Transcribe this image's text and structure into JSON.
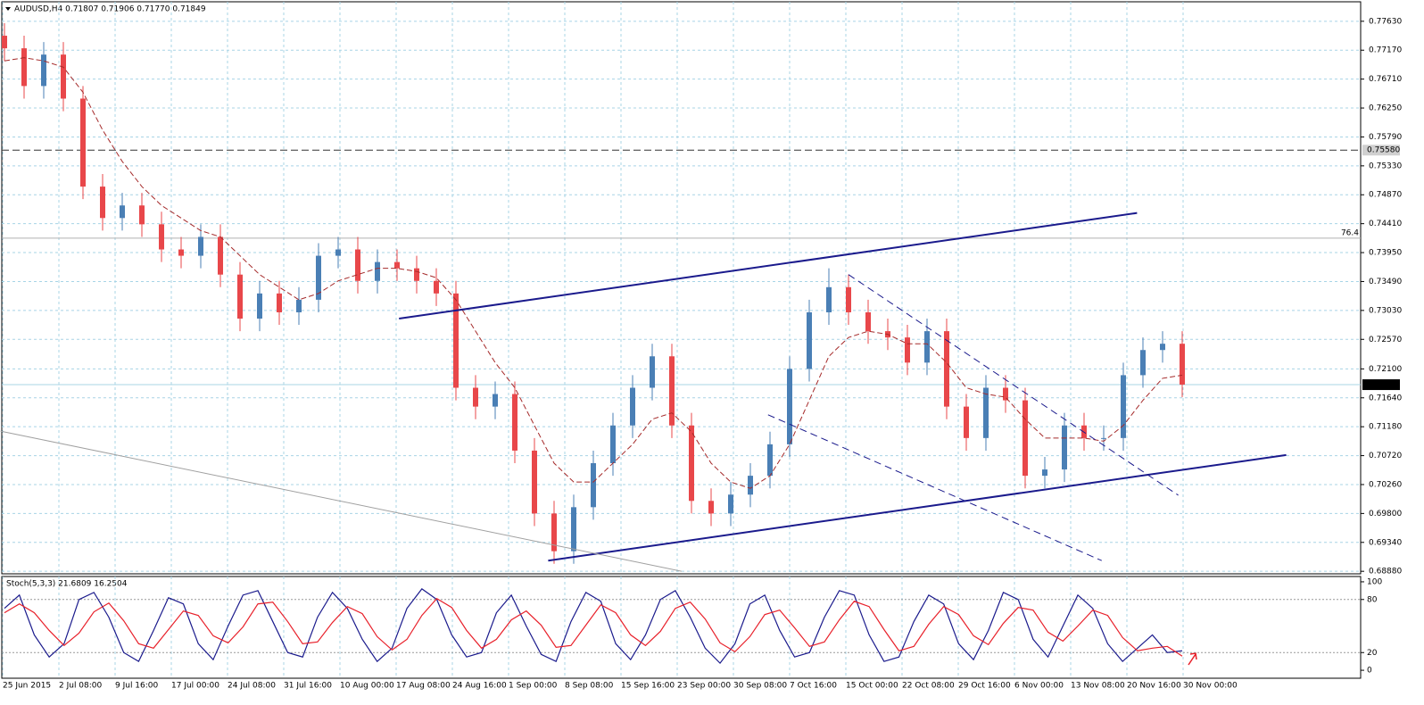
{
  "chart_data": [
    {
      "type": "candlestick",
      "title": "AUDUSD,H4  0.71807 0.71906 0.71770 0.71849",
      "up_color": "#4a7fb5",
      "down_color": "#e8474a",
      "ma_color": "#a52a2a",
      "candles": [
        [
          0.774,
          0.776,
          0.77,
          0.772
        ],
        [
          0.772,
          0.774,
          0.764,
          0.766
        ],
        [
          0.766,
          0.773,
          0.764,
          0.771
        ],
        [
          0.771,
          0.773,
          0.762,
          0.764
        ],
        [
          0.764,
          0.766,
          0.748,
          0.75
        ],
        [
          0.75,
          0.752,
          0.743,
          0.745
        ],
        [
          0.745,
          0.749,
          0.743,
          0.747
        ],
        [
          0.747,
          0.749,
          0.742,
          0.744
        ],
        [
          0.744,
          0.746,
          0.738,
          0.74
        ],
        [
          0.74,
          0.742,
          0.737,
          0.739
        ],
        [
          0.739,
          0.744,
          0.737,
          0.742
        ],
        [
          0.742,
          0.744,
          0.734,
          0.736
        ],
        [
          0.736,
          0.738,
          0.727,
          0.729
        ],
        [
          0.729,
          0.735,
          0.727,
          0.733
        ],
        [
          0.733,
          0.735,
          0.728,
          0.73
        ],
        [
          0.73,
          0.734,
          0.728,
          0.732
        ],
        [
          0.732,
          0.741,
          0.73,
          0.739
        ],
        [
          0.739,
          0.742,
          0.737,
          0.74
        ],
        [
          0.74,
          0.742,
          0.733,
          0.735
        ],
        [
          0.735,
          0.74,
          0.733,
          0.738
        ],
        [
          0.738,
          0.74,
          0.735,
          0.737
        ],
        [
          0.737,
          0.739,
          0.733,
          0.735
        ],
        [
          0.735,
          0.737,
          0.731,
          0.733
        ],
        [
          0.733,
          0.735,
          0.716,
          0.718
        ],
        [
          0.718,
          0.72,
          0.713,
          0.715
        ],
        [
          0.715,
          0.719,
          0.713,
          0.717
        ],
        [
          0.717,
          0.719,
          0.706,
          0.708
        ],
        [
          0.708,
          0.71,
          0.696,
          0.698
        ],
        [
          0.698,
          0.7,
          0.69,
          0.692
        ],
        [
          0.692,
          0.701,
          0.69,
          0.699
        ],
        [
          0.699,
          0.708,
          0.697,
          0.706
        ],
        [
          0.706,
          0.714,
          0.704,
          0.712
        ],
        [
          0.712,
          0.72,
          0.71,
          0.718
        ],
        [
          0.718,
          0.725,
          0.716,
          0.723
        ],
        [
          0.723,
          0.725,
          0.71,
          0.712
        ],
        [
          0.712,
          0.714,
          0.698,
          0.7
        ],
        [
          0.7,
          0.702,
          0.696,
          0.698
        ],
        [
          0.698,
          0.703,
          0.696,
          0.701
        ],
        [
          0.701,
          0.706,
          0.699,
          0.704
        ],
        [
          0.704,
          0.711,
          0.702,
          0.709
        ],
        [
          0.709,
          0.723,
          0.707,
          0.721
        ],
        [
          0.721,
          0.732,
          0.719,
          0.73
        ],
        [
          0.73,
          0.737,
          0.728,
          0.734
        ],
        [
          0.734,
          0.736,
          0.728,
          0.73
        ],
        [
          0.73,
          0.732,
          0.725,
          0.727
        ],
        [
          0.727,
          0.729,
          0.724,
          0.726
        ],
        [
          0.726,
          0.728,
          0.72,
          0.722
        ],
        [
          0.722,
          0.729,
          0.72,
          0.727
        ],
        [
          0.727,
          0.729,
          0.713,
          0.715
        ],
        [
          0.715,
          0.717,
          0.708,
          0.71
        ],
        [
          0.71,
          0.72,
          0.708,
          0.718
        ],
        [
          0.718,
          0.72,
          0.714,
          0.716
        ],
        [
          0.716,
          0.718,
          0.702,
          0.704
        ],
        [
          0.704,
          0.707,
          0.702,
          0.705
        ],
        [
          0.705,
          0.714,
          0.703,
          0.712
        ],
        [
          0.712,
          0.714,
          0.708,
          0.71
        ],
        [
          0.71,
          0.712,
          0.708,
          0.71
        ],
        [
          0.71,
          0.722,
          0.708,
          0.72
        ],
        [
          0.72,
          0.726,
          0.718,
          0.724
        ],
        [
          0.724,
          0.727,
          0.722,
          0.725
        ],
        [
          0.725,
          0.727,
          0.7165,
          0.7185
        ]
      ],
      "ma": [
        0.77,
        0.7705,
        0.77,
        0.769,
        0.765,
        0.759,
        0.754,
        0.75,
        0.747,
        0.745,
        0.743,
        0.742,
        0.739,
        0.736,
        0.734,
        0.732,
        0.733,
        0.735,
        0.736,
        0.737,
        0.737,
        0.7365,
        0.7355,
        0.732,
        0.727,
        0.722,
        0.718,
        0.712,
        0.706,
        0.703,
        0.703,
        0.706,
        0.709,
        0.713,
        0.714,
        0.711,
        0.706,
        0.703,
        0.702,
        0.704,
        0.709,
        0.716,
        0.723,
        0.726,
        0.727,
        0.7265,
        0.725,
        0.725,
        0.722,
        0.718,
        0.717,
        0.7165,
        0.713,
        0.71,
        0.71,
        0.71,
        0.7095,
        0.712,
        0.716,
        0.7195,
        0.72
      ],
      "ylim": [
        0.6884,
        0.7794
      ],
      "yticks": [
        {
          "value": 0.7763,
          "label": "0.77630"
        },
        {
          "value": 0.7717,
          "label": "0.77170"
        },
        {
          "value": 0.7671,
          "label": "0.76710"
        },
        {
          "value": 0.7625,
          "label": "0.76250"
        },
        {
          "value": 0.7579,
          "label": "0.75790"
        },
        {
          "value": 0.7533,
          "label": "0.75330"
        },
        {
          "value": 0.7487,
          "label": "0.74870"
        },
        {
          "value": 0.7441,
          "label": "0.74410"
        },
        {
          "value": 0.7395,
          "label": "0.73950"
        },
        {
          "value": 0.7349,
          "label": "0.73490"
        },
        {
          "value": 0.7303,
          "label": "0.73030"
        },
        {
          "value": 0.7257,
          "label": "0.72570"
        },
        {
          "value": 0.721,
          "label": "0.72100"
        },
        {
          "value": 0.7164,
          "label": "0.71640"
        },
        {
          "value": 0.7118,
          "label": "0.71180"
        },
        {
          "value": 0.7072,
          "label": "0.70720"
        },
        {
          "value": 0.7026,
          "label": "0.70260"
        },
        {
          "value": 0.698,
          "label": "0.69800"
        },
        {
          "value": 0.6934,
          "label": "0.69340"
        },
        {
          "value": 0.6888,
          "label": "0.68880"
        }
      ],
      "price_lines": [
        {
          "value": 0.7558,
          "label": "0.75580"
        },
        {
          "value": 0.71849,
          "label": "0.71849"
        }
      ],
      "level": {
        "value": 0.7418,
        "label": "76.4"
      },
      "trend_lines": [
        {
          "from": [
            20.1,
            0.729
          ],
          "to": [
            57.7,
            0.7458
          ],
          "style": "solid",
          "color": "#1a1a8c"
        },
        {
          "from": [
            27.7,
            0.6905
          ],
          "to": [
            65.3,
            0.7073
          ],
          "style": "solid",
          "color": "#1a1a8c"
        },
        {
          "from": [
            43,
            0.736
          ],
          "to": [
            59.8,
            0.7009
          ],
          "style": "dashed",
          "color": "#1a1a8c"
        },
        {
          "from": [
            38.9,
            0.7137
          ],
          "to": [
            55.9,
            0.6905
          ],
          "style": "dashed",
          "color": "#1a1a8c"
        },
        {
          "from": [
            -0.2,
            0.7111
          ],
          "to": [
            34.5,
            0.6888
          ],
          "style": "solid",
          "color": "#a0a0a0"
        }
      ],
      "x_labels": [
        "25 Jun 2015",
        "2 Jul 08:00",
        "9 Jul 16:00",
        "17 Jul 00:00",
        "24 Jul 08:00",
        "31 Jul 16:00",
        "10 Aug 00:00",
        "17 Aug 08:00",
        "24 Aug 16:00",
        "1 Sep 00:00",
        "8 Sep 08:00",
        "15 Sep 16:00",
        "23 Sep 00:00",
        "30 Sep 08:00",
        "7 Oct 16:00",
        "15 Oct 00:00",
        "22 Oct 08:00",
        "29 Oct 16:00",
        "6 Nov 00:00",
        "13 Nov 08:00",
        "20 Nov 16:00",
        "30 Nov 00:00"
      ]
    },
    {
      "type": "oscillator",
      "title": "Stoch(5,3,3) 21.6809 16.2504",
      "ylim": [
        -9,
        106
      ],
      "yticks": [
        100,
        80,
        20,
        0
      ],
      "series": [
        {
          "name": "Main",
          "color": "#1a1a8c",
          "values": [
            70,
            85,
            40,
            15,
            30,
            80,
            88,
            60,
            20,
            10,
            45,
            82,
            75,
            30,
            12,
            50,
            85,
            90,
            55,
            20,
            15,
            60,
            88,
            70,
            35,
            10,
            25,
            70,
            92,
            80,
            40,
            15,
            20,
            65,
            85,
            50,
            18,
            10,
            55,
            88,
            78,
            30,
            12,
            40,
            80,
            90,
            60,
            25,
            8,
            30,
            75,
            85,
            45,
            15,
            20,
            60,
            90,
            85,
            40,
            10,
            15,
            55,
            85,
            75,
            30,
            12,
            45,
            88,
            80,
            35,
            15,
            50,
            85,
            70,
            30,
            10,
            25,
            40,
            20,
            22
          ]
        },
        {
          "name": "Signal",
          "color": "#e8202a",
          "values": [
            65,
            75,
            65,
            45,
            28,
            42,
            66,
            76,
            56,
            30,
            25,
            46,
            67,
            62,
            39,
            31,
            49,
            75,
            77,
            55,
            30,
            32,
            54,
            72,
            64,
            38,
            23,
            35,
            62,
            81,
            71,
            45,
            25,
            35,
            57,
            67,
            51,
            26,
            28,
            51,
            74,
            65,
            40,
            28,
            44,
            70,
            77,
            58,
            31,
            21,
            38,
            63,
            68,
            48,
            27,
            32,
            57,
            78,
            72,
            46,
            22,
            27,
            52,
            72,
            63,
            39,
            29,
            53,
            71,
            68,
            43,
            33,
            50,
            68,
            62,
            37,
            22,
            25,
            27,
            16
          ]
        }
      ]
    }
  ]
}
